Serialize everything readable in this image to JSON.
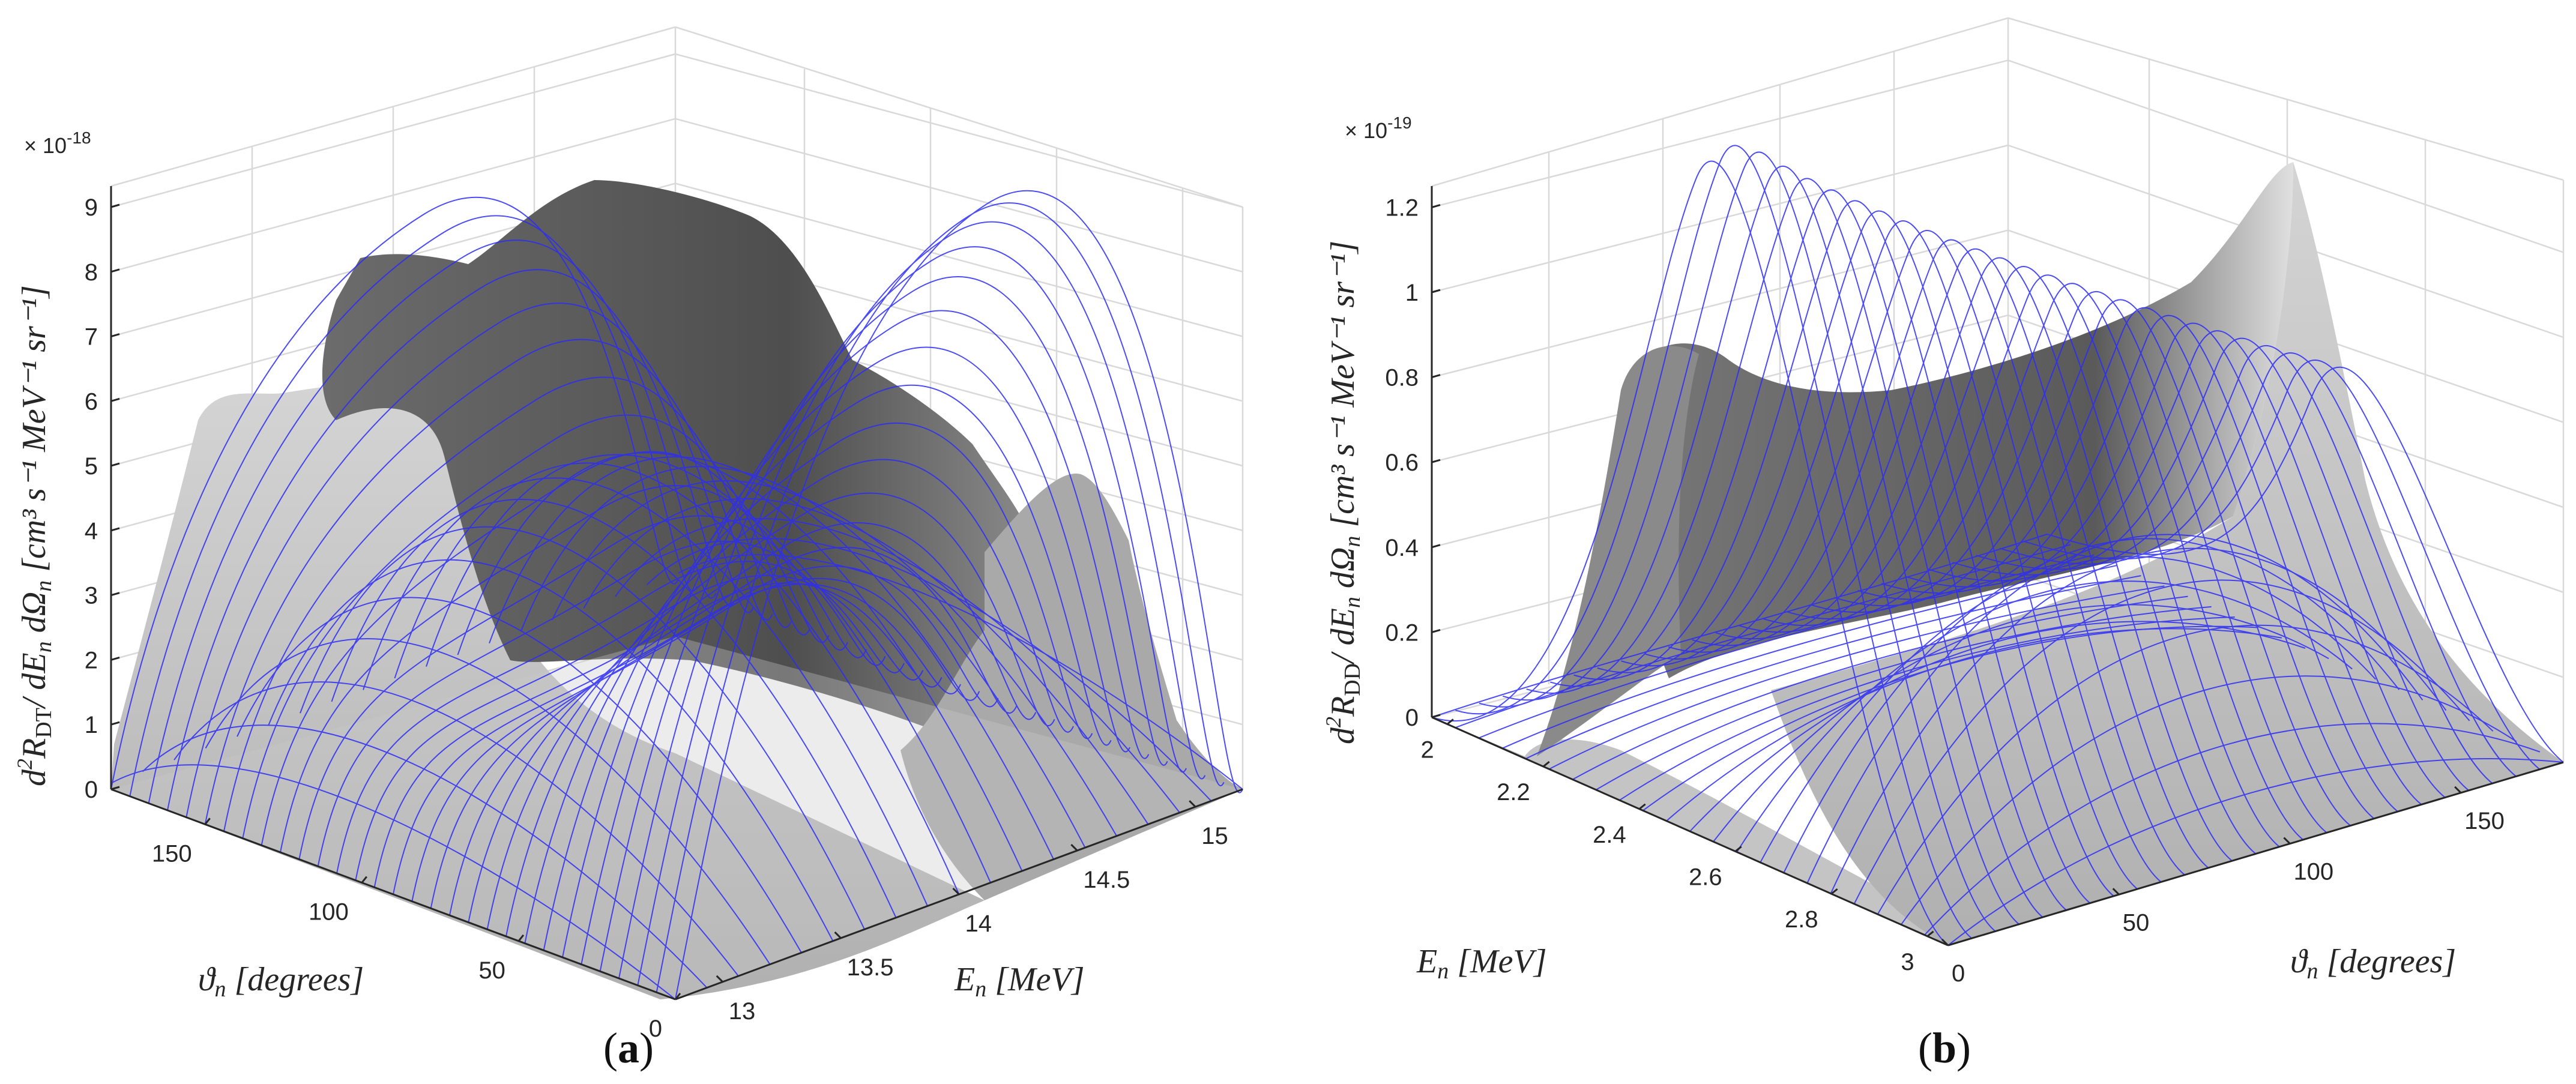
{
  "colors": {
    "surface_light": "#c6c6c6",
    "surface_dark": "#555555",
    "mesh": "#2d2df5",
    "grid": "#d9d9d9",
    "axis": "#262626"
  },
  "chart_data": [
    {
      "type": "surface",
      "panel_label_left": "(",
      "panel_label_letter": "a",
      "panel_label_right": ")",
      "exponent_label": "× 10",
      "exponent_value": "-18",
      "zlabel": "d²R_DT / dE_n dΩ_n  [cm³ s⁻¹ MeV⁻¹ sr⁻¹]",
      "xlabel": "ϑ_n  [degrees]",
      "ylabel": "E_n  [MeV]",
      "zticks": [
        "0",
        "1",
        "2",
        "3",
        "4",
        "5",
        "6",
        "7",
        "8",
        "9"
      ],
      "xticks": [
        "150",
        "100",
        "50",
        "0"
      ],
      "yticks": [
        "13",
        "13.5",
        "14",
        "14.5",
        "15"
      ],
      "xlim": [
        0,
        180
      ],
      "ylim": [
        12.8,
        15.2
      ],
      "zlim": [
        0,
        9
      ],
      "peak_values": [
        {
          "theta": 0,
          "E": 14.0,
          "z": 8.6
        },
        {
          "theta": 180,
          "E": 13.3,
          "z": 6.2
        },
        {
          "theta": 180,
          "E": 14.8,
          "z": 4.5
        }
      ]
    },
    {
      "type": "surface",
      "panel_label_left": "(",
      "panel_label_letter": "b",
      "panel_label_right": ")",
      "exponent_label": "× 10",
      "exponent_value": "-19",
      "zlabel": "d²R_DD / dE_n dΩ_n  [cm³ s⁻¹ MeV⁻¹ sr⁻¹]",
      "xlabel": "E_n  [MeV]",
      "ylabel": "ϑ_n  [degrees]",
      "zticks": [
        "0",
        "0.2",
        "0.4",
        "0.6",
        "0.8",
        "1",
        "1.2"
      ],
      "xticks": [
        "2",
        "2.2",
        "2.4",
        "2.6",
        "2.8",
        "3"
      ],
      "yticks": [
        "0",
        "50",
        "100",
        "150"
      ],
      "xlim": [
        1.9,
        3.1
      ],
      "ylim": [
        0,
        180
      ],
      "zlim": [
        0,
        1.25
      ],
      "peak_values": [
        {
          "theta": 0,
          "E": 2.9,
          "z": 1.2
        },
        {
          "theta": 180,
          "E": 2.2,
          "z": 0.85
        }
      ]
    }
  ],
  "a_labels": {
    "z_pre": "d",
    "z_sup": "2",
    "z_R": "R",
    "z_sub": "DT",
    "z_mid": "/ dE",
    "z_n": "n",
    "z_dO": " dΩ",
    "z_n2": "n",
    "z_units": "  [cm³ s⁻¹ MeV⁻¹ sr⁻¹]",
    "x_main": "ϑ",
    "x_sub": "n",
    "x_units": "  [degrees]",
    "y_main": "E",
    "y_sub": "n",
    "y_units": "  [MeV]"
  },
  "b_labels": {
    "z_pre": "d",
    "z_sup": "2",
    "z_R": "R",
    "z_sub": "DD",
    "z_mid": "/ dE",
    "z_n": "n",
    "z_dO": " dΩ",
    "z_n2": "n",
    "z_units": "  [cm³ s⁻¹ MeV⁻¹ sr⁻¹]",
    "x_main": "E",
    "x_sub": "n",
    "x_units": "  [MeV]",
    "y_main": "ϑ",
    "y_sub": "n",
    "y_units": "  [degrees]"
  }
}
